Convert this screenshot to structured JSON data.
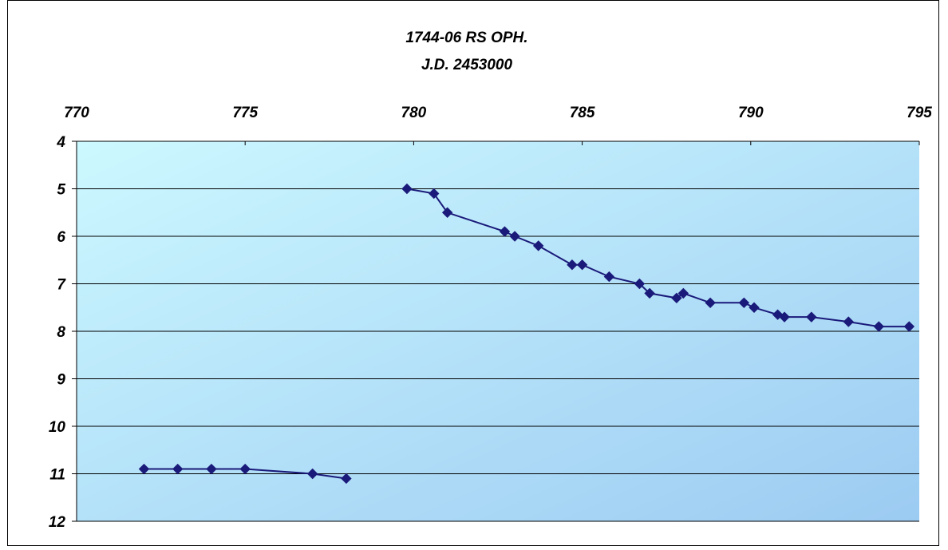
{
  "chart_data": {
    "type": "line",
    "title": "1744-06  RS OPH.",
    "subtitle": "J.D. 2453000",
    "xlabel": "",
    "ylabel": "",
    "x_axis_position": "top",
    "y_axis_inverted": true,
    "xlim": [
      770,
      795
    ],
    "ylim": [
      4,
      12
    ],
    "x_ticks": [
      "770",
      "775",
      "780",
      "785",
      "790",
      "795"
    ],
    "y_ticks": [
      "4",
      "5",
      "6",
      "7",
      "8",
      "9",
      "10",
      "11",
      "12"
    ],
    "grid": "horizontal",
    "colors": {
      "marker": "#1a1a7a",
      "line": "#1a1a7a",
      "plot_bg_start": "#ccf8ff",
      "plot_bg_end": "#9ccbf2"
    },
    "series": [
      {
        "segments": [
          [
            [
              772.0,
              10.9
            ],
            [
              773.0,
              10.9
            ],
            [
              774.0,
              10.9
            ],
            [
              775.0,
              10.9
            ],
            [
              777.0,
              11.0
            ],
            [
              778.0,
              11.1
            ]
          ],
          [
            [
              779.8,
              5.0
            ],
            [
              780.6,
              5.1
            ],
            [
              781.0,
              5.5
            ],
            [
              782.7,
              5.9
            ],
            [
              783.0,
              6.0
            ],
            [
              783.7,
              6.2
            ],
            [
              784.7,
              6.6
            ],
            [
              785.0,
              6.6
            ],
            [
              785.8,
              6.85
            ],
            [
              786.7,
              7.0
            ],
            [
              787.0,
              7.2
            ],
            [
              787.8,
              7.3
            ],
            [
              788.0,
              7.2
            ],
            [
              788.8,
              7.4
            ],
            [
              789.8,
              7.4
            ],
            [
              790.1,
              7.5
            ],
            [
              790.8,
              7.65
            ],
            [
              791.0,
              7.7
            ],
            [
              791.8,
              7.7
            ],
            [
              792.9,
              7.8
            ],
            [
              793.8,
              7.9
            ],
            [
              794.7,
              7.9
            ]
          ]
        ]
      }
    ]
  }
}
